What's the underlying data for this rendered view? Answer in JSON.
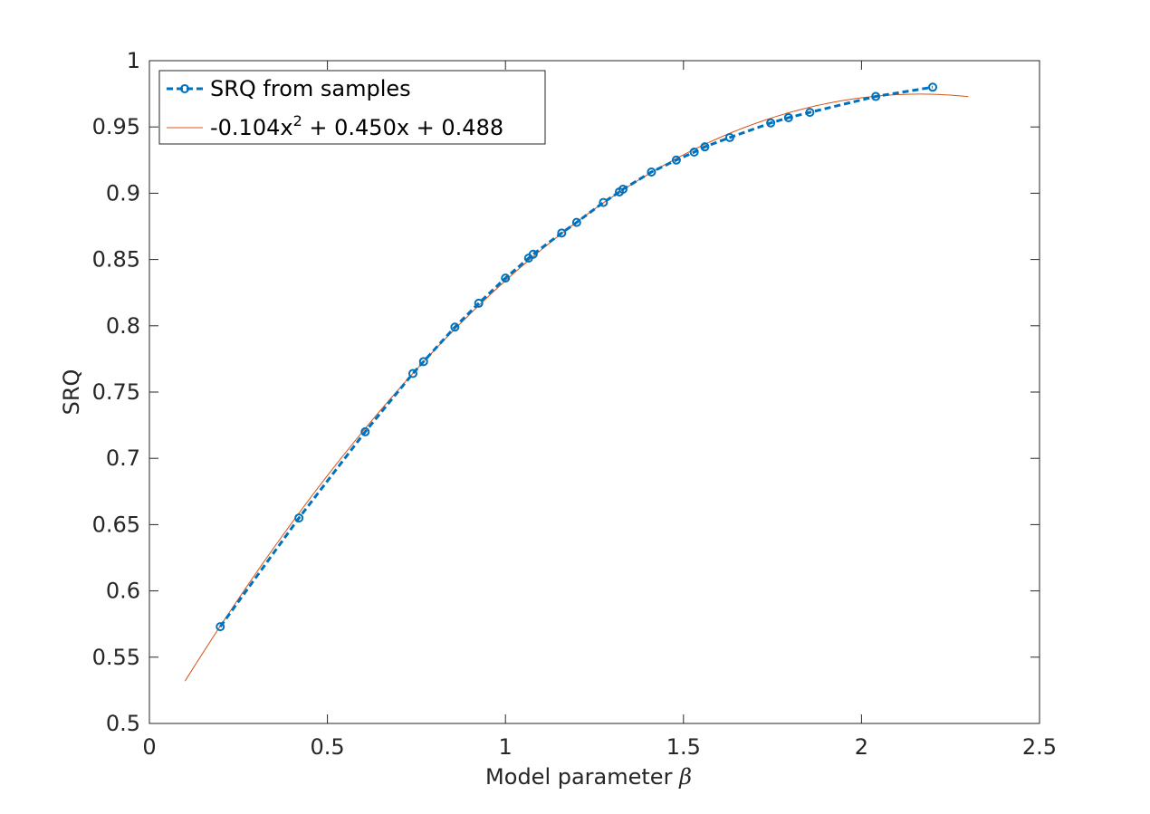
{
  "chart_data": {
    "type": "line",
    "xlabel": "Model parameter",
    "xlabel_symbol": "β",
    "ylabel": "SRQ",
    "xlim": [
      0,
      2.5
    ],
    "ylim": [
      0.5,
      1
    ],
    "xticks": [
      0,
      0.5,
      1,
      1.5,
      2,
      2.5
    ],
    "xtick_labels": [
      "0",
      "0.5",
      "1",
      "1.5",
      "2",
      "2.5"
    ],
    "yticks": [
      0.5,
      0.55,
      0.6,
      0.65,
      0.7,
      0.75,
      0.8,
      0.85,
      0.9,
      0.95,
      1
    ],
    "ytick_labels": [
      "0.5",
      "0.55",
      "0.6",
      "0.65",
      "0.7",
      "0.75",
      "0.8",
      "0.85",
      "0.9",
      "0.95",
      "1"
    ],
    "grid": false,
    "legend_position": "top-left",
    "series": [
      {
        "name": "SRQ from samples",
        "style": "dashed-with-circle-markers",
        "color": "#0072BD",
        "x": [
          0.199,
          0.42,
          0.606,
          0.74,
          0.77,
          0.858,
          0.925,
          1.0,
          1.065,
          1.078,
          1.158,
          1.2,
          1.275,
          1.32,
          1.33,
          1.41,
          1.48,
          1.53,
          1.56,
          1.63,
          1.745,
          1.795,
          1.855,
          2.04,
          2.2
        ],
        "y": [
          0.573,
          0.655,
          0.72,
          0.764,
          0.773,
          0.799,
          0.817,
          0.836,
          0.851,
          0.854,
          0.87,
          0.878,
          0.893,
          0.901,
          0.903,
          0.916,
          0.925,
          0.931,
          0.935,
          0.942,
          0.953,
          0.957,
          0.961,
          0.973,
          0.98
        ]
      },
      {
        "name": "-0.104x^2 + 0.450x + 0.488",
        "legend_main": "-0.104x",
        "legend_sup": "2",
        "legend_rest": " + 0.450x + 0.488",
        "style": "solid-thin",
        "color": "#D95319",
        "coefficients": [
          -0.104,
          0.45,
          0.488
        ],
        "x_range": [
          0.1,
          2.3
        ]
      }
    ]
  }
}
